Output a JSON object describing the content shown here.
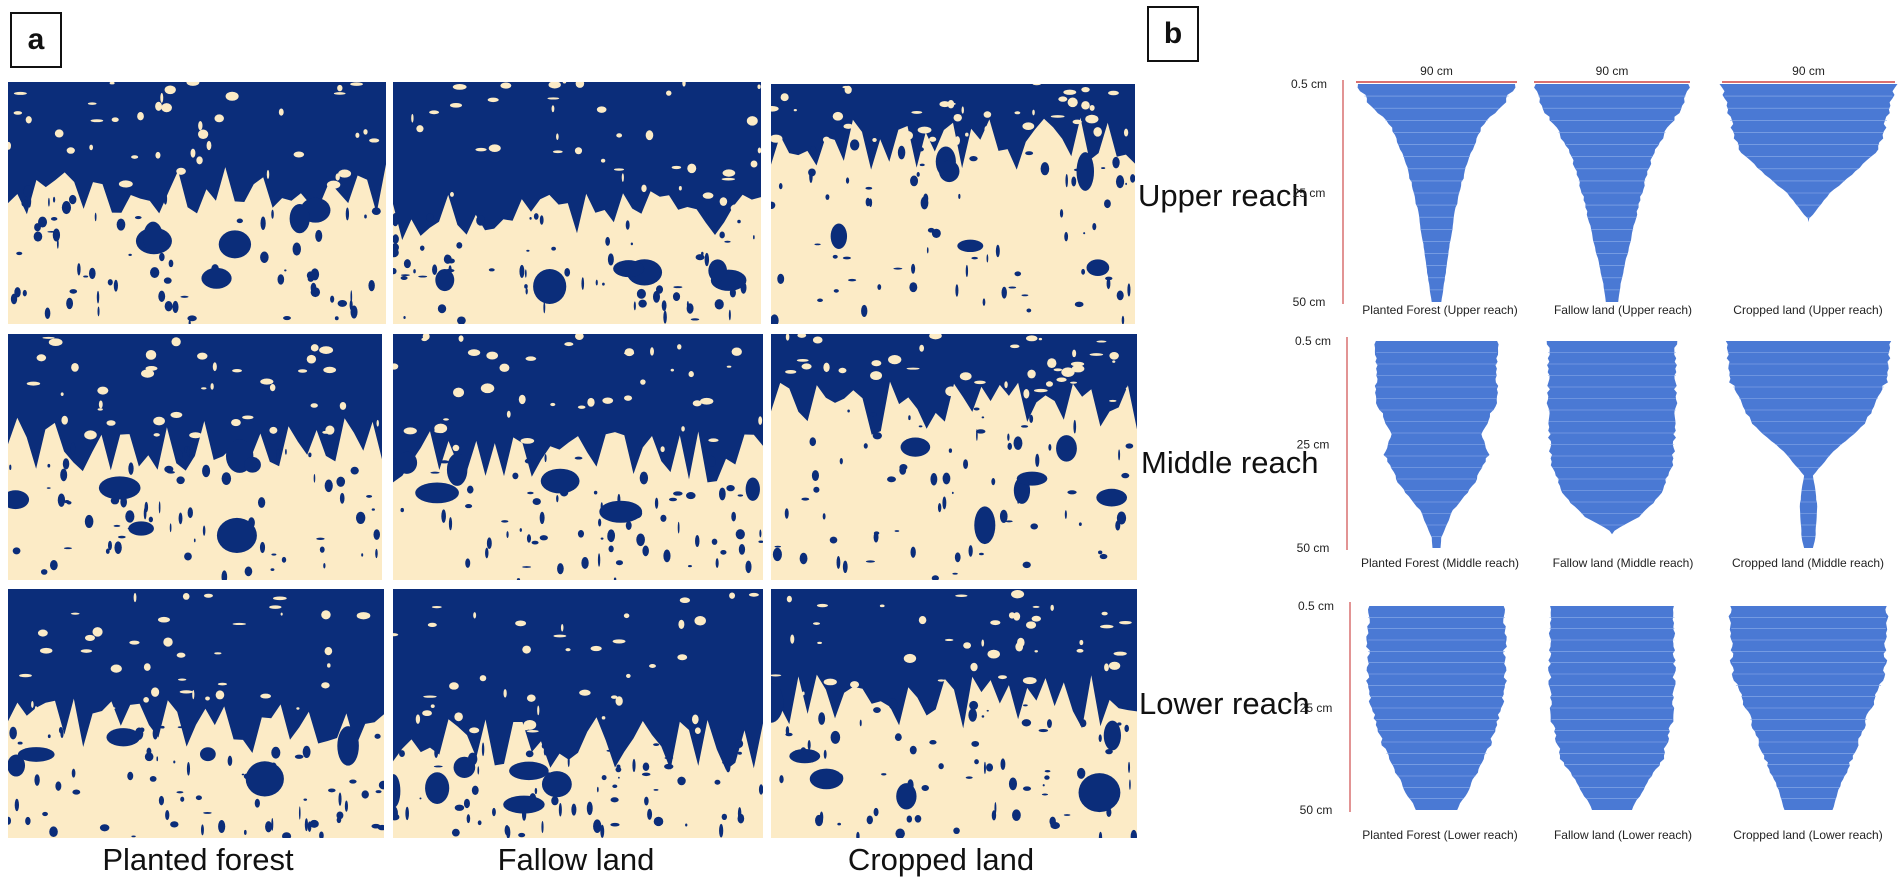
{
  "panel_a": {
    "letter": "a",
    "columns": [
      "Planted forest",
      "Fallow land",
      "Cropped land"
    ],
    "rows": [
      "Upper reach",
      "Middle reach",
      "Lower reach"
    ],
    "colors": {
      "stain": "#0b2d7a",
      "soil": "#fcebc6"
    }
  },
  "panel_b": {
    "letter": "b",
    "width_label": "90 cm",
    "depth_ticks": [
      "0.5 cm",
      "25 cm",
      "50 cm"
    ],
    "profile_color": "#4a79d4",
    "axis_color": "#d97070",
    "captions": [
      [
        "Planted Forest (Upper reach)",
        "Fallow land (Upper reach)",
        "Cropped land (Upper reach)"
      ],
      [
        "Planted Forest (Middle  reach)",
        "Fallow land (Middle reach)",
        "Cropped land (Middle reach)"
      ],
      [
        "Planted Forest (Lower reach)",
        "Fallow land (Lower reach)",
        "Cropped land (Lower reach)"
      ]
    ]
  }
}
